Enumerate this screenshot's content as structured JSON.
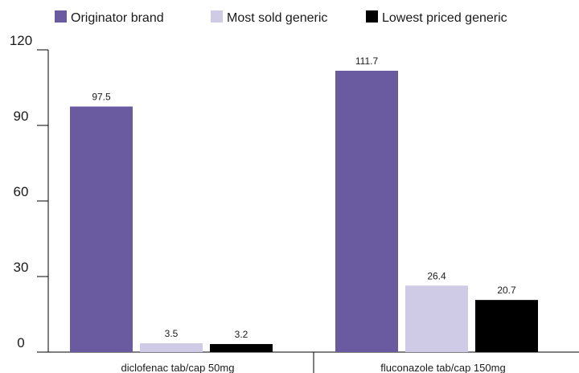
{
  "chart_data": {
    "type": "bar",
    "categories": [
      "diclofenac tab/cap 50mg",
      "fluconazole tab/cap 150mg"
    ],
    "series": [
      {
        "name": "Originator brand",
        "values": [
          97.5,
          111.7
        ],
        "color": "#6a5aa0"
      },
      {
        "name": "Most sold generic",
        "values": [
          3.5,
          26.4
        ],
        "color": "#cfcae6"
      },
      {
        "name": "Lowest priced generic",
        "values": [
          3.2,
          20.7
        ],
        "color": "#000000"
      }
    ],
    "data_labels": [
      [
        "97.5",
        "3.5",
        "3.2"
      ],
      [
        "111.7",
        "26.4",
        "20.7"
      ]
    ],
    "yticks": [
      "0",
      "30",
      "60",
      "90",
      "120"
    ],
    "ylim": [
      0,
      120
    ],
    "legend": "top-left",
    "grid": false
  }
}
